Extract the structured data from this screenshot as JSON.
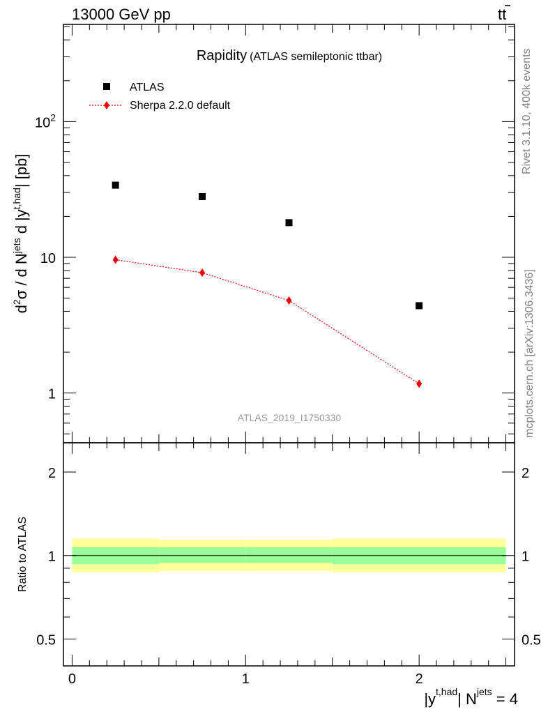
{
  "header": {
    "left": "13000 GeV pp",
    "right_main": "tt",
    "right_bar": "t"
  },
  "side_labels": {
    "rivet": "Rivet 3.1.10,  400k events",
    "mcplots": "mcplots.cern.ch [arXiv:1306.3436]"
  },
  "colors": {
    "atlas": "#000000",
    "sherpa": "#ee0000",
    "band_inner": "#99ff99",
    "band_outer": "#ffff99",
    "watermark": "#999999"
  },
  "chart_data": [
    {
      "type": "scatter",
      "title": "Rapidity",
      "subtitle": "(ATLAS semileptonic ttbar)",
      "watermark": "ATLAS_2019_I1750330",
      "ylabel": {
        "a": "d",
        "a_sup": "2",
        "b": "σ / d N",
        "b_sup": "jets",
        "c": " d |y",
        "c_sup": "t,had",
        "d": "| [pb]"
      },
      "yscale": "log",
      "xlim": [
        -0.05,
        2.55
      ],
      "ylim": [
        0.43,
        520
      ],
      "yticks": [
        {
          "v": 1,
          "label": "1"
        },
        {
          "v": 10,
          "label": "10"
        },
        {
          "v": 100,
          "base": "10",
          "exp": "2"
        }
      ],
      "legend": [
        {
          "name": "ATLAS",
          "marker": "square"
        },
        {
          "name": "Sherpa 2.2.0 default",
          "marker": "diamond"
        }
      ],
      "legend_position": "top-left",
      "series": [
        {
          "name": "ATLAS",
          "x": [
            0.25,
            0.75,
            1.25,
            2.0
          ],
          "y": [
            34,
            28,
            18,
            4.4
          ]
        },
        {
          "name": "Sherpa 2.2.0 default",
          "x": [
            0.25,
            0.75,
            1.25,
            2.0
          ],
          "y": [
            9.6,
            7.7,
            4.8,
            1.17
          ]
        }
      ]
    },
    {
      "type": "line",
      "ylabel": "Ratio to ATLAS",
      "yscale": "log",
      "xlim": [
        -0.05,
        2.55
      ],
      "ylim": [
        0.4,
        2.55
      ],
      "xticks": [
        {
          "v": 0,
          "label": "0"
        },
        {
          "v": 1,
          "label": "1"
        },
        {
          "v": 2,
          "label": "2"
        }
      ],
      "yticks": [
        {
          "v": 0.5,
          "label": "0.5"
        },
        {
          "v": 1,
          "label": "1"
        },
        {
          "v": 2,
          "label": "2"
        }
      ],
      "xlabel": {
        "a": "|y",
        "a_sup": "t,had",
        "b": "| N",
        "b_sup": "jets",
        "c": " = 4"
      },
      "reference_value": 1,
      "bands": [
        {
          "x0": 0.0,
          "x1": 0.5,
          "inner": [
            0.93,
            1.07
          ],
          "outer": [
            0.87,
            1.15
          ]
        },
        {
          "x0": 0.5,
          "x1": 1.0,
          "inner": [
            0.94,
            1.07
          ],
          "outer": [
            0.88,
            1.14
          ]
        },
        {
          "x0": 1.0,
          "x1": 1.5,
          "inner": [
            0.94,
            1.07
          ],
          "outer": [
            0.88,
            1.14
          ]
        },
        {
          "x0": 1.5,
          "x1": 2.5,
          "inner": [
            0.93,
            1.07
          ],
          "outer": [
            0.87,
            1.15
          ]
        }
      ]
    }
  ]
}
